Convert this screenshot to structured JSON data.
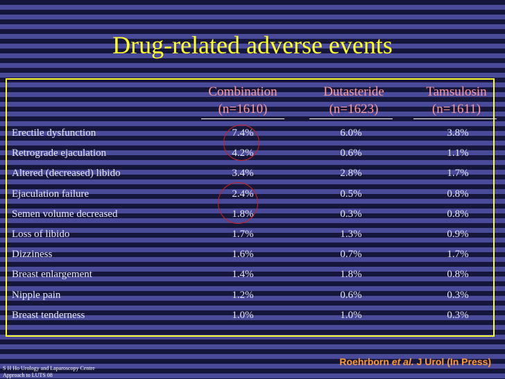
{
  "title": "Drug-related adverse events",
  "columns": [
    {
      "name": "Combination",
      "n": "(n=1610)"
    },
    {
      "name": "Dutasteride",
      "n": "(n=1623)"
    },
    {
      "name": "Tamsulosin",
      "n": "(n=1611)"
    }
  ],
  "rows": [
    {
      "label": "Erectile dysfunction",
      "values": [
        "7.4%",
        "6.0%",
        "3.8%"
      ]
    },
    {
      "label": "Retrograde ejaculation",
      "values": [
        "4.2%",
        "0.6%",
        "1.1%"
      ]
    },
    {
      "label": "Altered (decreased) libido",
      "values": [
        "3.4%",
        "2.8%",
        "1.7%"
      ]
    },
    {
      "label": "Ejaculation failure",
      "values": [
        "2.4%",
        "0.5%",
        "0.8%"
      ]
    },
    {
      "label": "Semen volume decreased",
      "values": [
        "1.8%",
        "0.3%",
        "0.8%"
      ]
    },
    {
      "label": "Loss of libido",
      "values": [
        "1.7%",
        "1.3%",
        "0.9%"
      ]
    },
    {
      "label": "Dizziness",
      "values": [
        "1.6%",
        "0.7%",
        "1.7%"
      ]
    },
    {
      "label": "Breast enlargement",
      "values": [
        "1.4%",
        "1.8%",
        "0.8%"
      ]
    },
    {
      "label": "Nipple pain",
      "values": [
        "1.2%",
        "0.6%",
        "0.3%"
      ]
    },
    {
      "label": "Breast tenderness",
      "values": [
        "1.0%",
        "1.0%",
        "0.3%"
      ]
    }
  ],
  "footer": {
    "line1": "S H Ho Urology and Laparoscopy Centre",
    "line2": "Approach to LUTS 08"
  },
  "citation": {
    "author": "Roehrborn",
    "etal": "et al.",
    "journal": "J Urol (In Press)"
  },
  "colors": {
    "title": "#ffff33",
    "header": "#ff9999",
    "body_text": "#e6e6ff",
    "highlight_circle": "#cc2222",
    "citation": "#ff9933"
  }
}
